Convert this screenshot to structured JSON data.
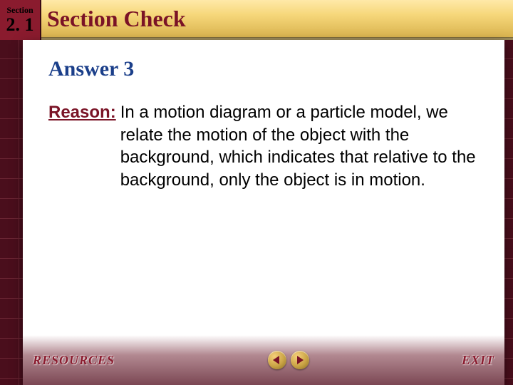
{
  "section": {
    "label": "Section",
    "number": "2. 1"
  },
  "header": {
    "title": "Section Check"
  },
  "content": {
    "answer_heading": "Answer 3",
    "reason_label": "Reason:",
    "reason_text": "In a motion diagram or a particle model, we relate the motion of the object with the background, which indicates that relative to the background, only the object is in motion."
  },
  "footer": {
    "resources": "RESOURCES",
    "exit": "EXIT"
  },
  "colors": {
    "accent_maroon": "#7a1326",
    "heading_blue": "#1b3f8a",
    "grid_bg": "#4a0e1c",
    "grid_line": "#6a2533",
    "gold_light": "#ffe9a8",
    "gold_dark": "#d9b34f"
  }
}
